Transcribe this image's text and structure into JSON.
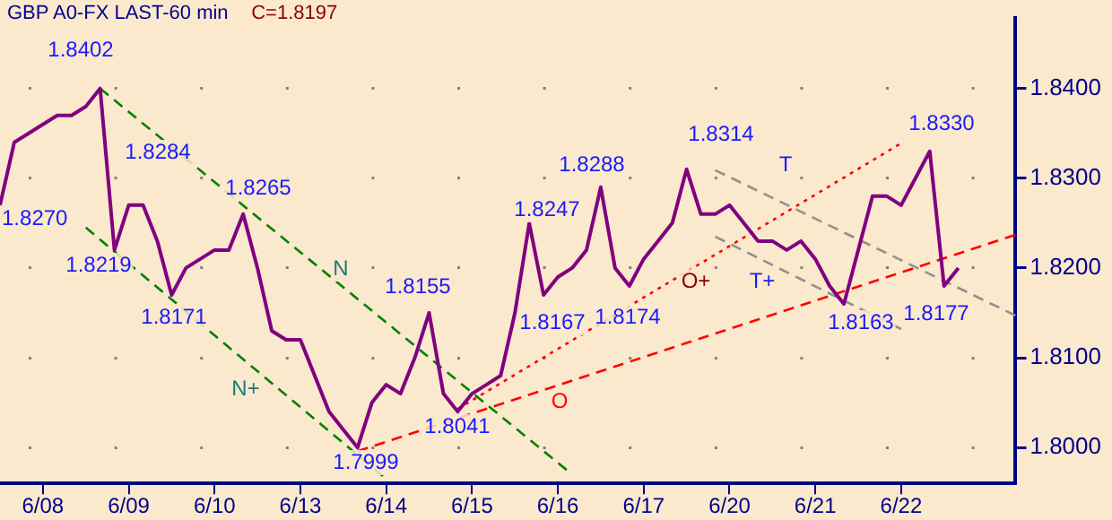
{
  "chart_data": {
    "type": "line",
    "title": "GBP A0-FX LAST-60 min",
    "subtitle": "C=1.8197",
    "categories": [
      null,
      null,
      null,
      "6/08",
      null,
      null,
      null,
      null,
      null,
      "6/09",
      null,
      null,
      null,
      null,
      null,
      "6/10",
      null,
      null,
      null,
      null,
      null,
      "6/13",
      null,
      null,
      null,
      null,
      null,
      "6/14",
      null,
      null,
      null,
      null,
      null,
      "6/15",
      null,
      null,
      null,
      null,
      null,
      "6/16",
      null,
      null,
      null,
      null,
      null,
      "6/17",
      null,
      null,
      null,
      null,
      null,
      "6/20",
      null,
      null,
      null,
      null,
      null,
      "6/21",
      null,
      null,
      null,
      null,
      null,
      "6/22",
      null,
      null,
      null,
      null,
      null,
      null,
      null,
      null
    ],
    "ylim": [
      1.796,
      1.8479
    ],
    "yticks": [
      {
        "value": 1.8,
        "label": "1.8000"
      },
      {
        "value": 1.81,
        "label": "1.8100"
      },
      {
        "value": 1.82,
        "label": "1.8200"
      },
      {
        "value": 1.83,
        "label": "1.8300"
      },
      {
        "value": 1.84,
        "label": "1.8400"
      }
    ],
    "grid": "y",
    "series": [
      {
        "color": "#800080",
        "line_style": "solid",
        "values": [
          1.827,
          1.834,
          1.835,
          1.836,
          1.837,
          1.837,
          1.838,
          1.84,
          1.822,
          1.827,
          1.827,
          1.823,
          1.817,
          1.82,
          1.821,
          1.822,
          1.822,
          1.826,
          1.82,
          1.813,
          1.812,
          1.812,
          1.808,
          1.804,
          1.802,
          1.8,
          1.805,
          1.807,
          1.806,
          1.81,
          1.815,
          1.806,
          1.804,
          1.806,
          1.807,
          1.808,
          1.815,
          1.825,
          1.817,
          1.819,
          1.82,
          1.822,
          1.829,
          1.82,
          1.818,
          1.821,
          1.823,
          1.825,
          1.831,
          1.826,
          1.826,
          1.827,
          1.825,
          1.823,
          1.823,
          1.822,
          1.823,
          1.821,
          1.818,
          1.816,
          1.822,
          1.828,
          1.828,
          1.827,
          1.83,
          1.833,
          1.818,
          1.82,
          null,
          null,
          null,
          null
        ]
      },
      {
        "type": "line",
        "color": "#008000",
        "line_style": "dashed",
        "values": [
          null,
          null,
          null,
          null,
          null,
          null,
          null,
          1.84,
          null,
          null,
          null,
          null,
          null,
          null,
          null,
          null,
          null,
          null,
          null,
          null,
          null,
          null,
          null,
          null,
          null,
          null,
          null,
          null,
          null,
          null,
          null,
          null,
          null,
          null,
          null,
          null,
          null,
          null,
          null,
          null,
          1.797,
          null,
          null,
          null,
          null,
          null,
          null,
          null,
          null,
          null,
          null,
          null,
          null,
          null,
          null,
          null,
          null,
          null,
          null,
          null,
          null,
          null,
          null,
          null,
          null,
          null,
          null,
          null,
          null,
          null,
          null,
          null
        ]
      },
      {
        "type": "line",
        "color": "#008000",
        "line_style": "dashed",
        "values": [
          null,
          null,
          null,
          null,
          null,
          null,
          1.8245,
          null,
          null,
          null,
          null,
          null,
          null,
          null,
          null,
          null,
          null,
          null,
          null,
          null,
          null,
          null,
          null,
          null,
          null,
          null,
          null,
          1.7965,
          null,
          null,
          null,
          null,
          null,
          null,
          null,
          null,
          null,
          null,
          null,
          null,
          null,
          null,
          null,
          null,
          null,
          null,
          null,
          null,
          null,
          null,
          null,
          null,
          null,
          null,
          null,
          null,
          null,
          null,
          null,
          null,
          null,
          null,
          null,
          null,
          null,
          null,
          null,
          null,
          null,
          null,
          null,
          null
        ]
      },
      {
        "type": "line",
        "color": "#ff0000",
        "line_style": "dashed",
        "values": [
          null,
          null,
          null,
          null,
          null,
          null,
          null,
          null,
          null,
          null,
          null,
          null,
          null,
          null,
          null,
          null,
          null,
          null,
          null,
          null,
          null,
          null,
          null,
          null,
          null,
          1.7996,
          null,
          null,
          null,
          null,
          null,
          null,
          null,
          null,
          null,
          null,
          null,
          null,
          null,
          null,
          null,
          null,
          null,
          null,
          null,
          null,
          null,
          null,
          null,
          null,
          null,
          null,
          null,
          null,
          null,
          null,
          null,
          null,
          null,
          null,
          null,
          null,
          null,
          null,
          null,
          null,
          null,
          null,
          null,
          null,
          null,
          1.8237
        ]
      },
      {
        "type": "line",
        "color": "#ff0000",
        "line_style": "dotted",
        "values": [
          null,
          null,
          null,
          null,
          null,
          null,
          null,
          null,
          null,
          null,
          null,
          null,
          null,
          null,
          null,
          null,
          null,
          null,
          null,
          null,
          null,
          null,
          null,
          null,
          null,
          null,
          null,
          null,
          null,
          null,
          null,
          null,
          1.8043,
          null,
          null,
          null,
          null,
          null,
          null,
          null,
          null,
          null,
          null,
          null,
          null,
          null,
          null,
          null,
          null,
          null,
          null,
          null,
          null,
          null,
          null,
          null,
          null,
          null,
          null,
          null,
          null,
          null,
          null,
          1.8339,
          null,
          null,
          null,
          null,
          null,
          null,
          null,
          null
        ]
      },
      {
        "type": "line",
        "color": "#909090",
        "line_style": "dashed",
        "values": [
          null,
          null,
          null,
          null,
          null,
          null,
          null,
          null,
          null,
          null,
          null,
          null,
          null,
          null,
          null,
          null,
          null,
          null,
          null,
          null,
          null,
          null,
          null,
          null,
          null,
          null,
          null,
          null,
          null,
          null,
          null,
          null,
          null,
          null,
          null,
          null,
          null,
          null,
          null,
          null,
          null,
          null,
          null,
          null,
          null,
          null,
          null,
          null,
          null,
          null,
          1.8309,
          null,
          null,
          null,
          null,
          null,
          null,
          null,
          null,
          null,
          null,
          null,
          null,
          null,
          null,
          null,
          null,
          null,
          null,
          null,
          null,
          1.8147
        ]
      },
      {
        "type": "line",
        "color": "#909090",
        "line_style": "dashed",
        "values": [
          null,
          null,
          null,
          null,
          null,
          null,
          null,
          null,
          null,
          null,
          null,
          null,
          null,
          null,
          null,
          null,
          null,
          null,
          null,
          null,
          null,
          null,
          null,
          null,
          null,
          null,
          null,
          null,
          null,
          null,
          null,
          null,
          null,
          null,
          null,
          null,
          null,
          null,
          null,
          null,
          null,
          null,
          null,
          null,
          null,
          null,
          null,
          null,
          null,
          null,
          1.8235,
          null,
          null,
          null,
          null,
          null,
          null,
          null,
          null,
          null,
          null,
          null,
          null,
          1.8132,
          null,
          null,
          null,
          null,
          null,
          null,
          null,
          null
        ]
      }
    ],
    "annotations": [
      "1.8402",
      "1.8270",
      "1.8284",
      "1.8219",
      "1.8265",
      "1.8171",
      "1.8155",
      "1.7999",
      "1.8041",
      "1.8247",
      "1.8167",
      "1.8174",
      "1.8288",
      "1.8314",
      "1.8163",
      "1.8330",
      "1.8177",
      "N",
      "N+",
      "O",
      "O+",
      "T",
      "T+"
    ]
  }
}
